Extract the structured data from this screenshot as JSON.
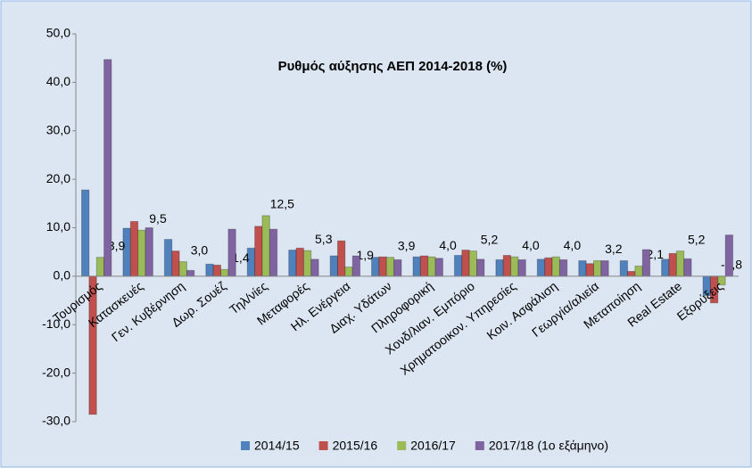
{
  "chart_data": {
    "type": "bar",
    "title": "Ρυθμός αύξησης ΑΕΠ 2014-2018 (%)",
    "categories": [
      "Τουρισμός",
      "Κατασκευές",
      "Γεν. Κυβέρνηση",
      "Δωρ. Σουέζ",
      "Τηλ/νίες",
      "Μεταφορές",
      "Ηλ. Ενέργεια",
      "Διαχ. Υδάτων",
      "Πληροφορική",
      "Χονδ/λιαν. Εμπόριο",
      "Χρηματοοικον. Υπηρεσίες",
      "Κοιν. Ασφάλιση",
      "Γεωργία/αλιεία",
      "Μεταποίηση",
      "Real Estate",
      "Εξορύξεις"
    ],
    "series": [
      {
        "name": "2014/15",
        "color": "#4f81bd",
        "values": [
          17.8,
          9.9,
          7.6,
          2.5,
          5.8,
          5.4,
          4.2,
          3.9,
          4.0,
          4.3,
          3.4,
          3.5,
          3.2,
          3.2,
          3.5,
          -4.0
        ]
      },
      {
        "name": "2015/16",
        "color": "#c0504d",
        "values": [
          -28.5,
          11.3,
          5.2,
          2.3,
          10.3,
          5.8,
          7.3,
          4.0,
          4.2,
          5.4,
          4.3,
          3.8,
          2.6,
          1.0,
          4.7,
          -5.5
        ]
      },
      {
        "name": "2016/17",
        "color": "#9bbb59",
        "values": [
          3.9,
          9.5,
          3.0,
          1.4,
          12.5,
          5.3,
          1.9,
          3.9,
          4.0,
          5.2,
          4.0,
          4.0,
          3.2,
          2.1,
          5.2,
          -1.8
        ],
        "value_labels": [
          "3,9",
          "9,5",
          "3,0",
          "1,4",
          "12,5",
          "5,3",
          "1,9",
          "3,9",
          "4,0",
          "5,2",
          "4,0",
          "4,0",
          "3,2",
          "2,1",
          "5,2",
          "-1,8"
        ]
      },
      {
        "name": "2017/18 (1ο εξάμηνο)",
        "color": "#8064a2",
        "values": [
          44.7,
          10.0,
          1.2,
          9.7,
          9.7,
          3.5,
          4.2,
          3.4,
          3.7,
          3.5,
          3.4,
          3.4,
          3.2,
          5.5,
          3.6,
          8.5
        ]
      }
    ],
    "ylim": [
      -30,
      50
    ],
    "yticks": [
      {
        "value": -30,
        "label": "-30,0"
      },
      {
        "value": -20,
        "label": "-20,0"
      },
      {
        "value": -10,
        "label": "-10,0"
      },
      {
        "value": 0,
        "label": "0,0"
      },
      {
        "value": 10,
        "label": "10,0"
      },
      {
        "value": 20,
        "label": "20,0"
      },
      {
        "value": 30,
        "label": "30,0"
      },
      {
        "value": 40,
        "label": "40,0"
      },
      {
        "value": 50,
        "label": "50,0"
      }
    ],
    "grid": false,
    "legend": "bottom"
  }
}
